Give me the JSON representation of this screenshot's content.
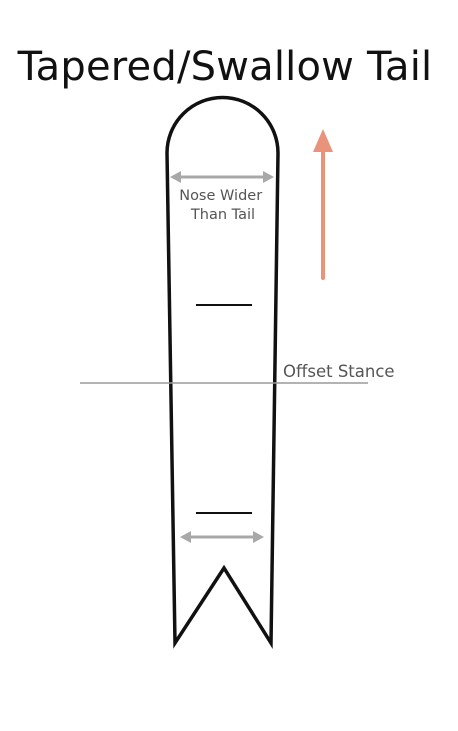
{
  "title": "Tapered/Swallow Tail",
  "labels": {
    "nose_width": [
      "Nose Wider",
      "Than Tail"
    ],
    "stance": "Offset Stance"
  },
  "colors": {
    "outline": "#111111",
    "width_arrows": "#a8a8a8",
    "stance_line": "#9a9a9a",
    "label_text": "#555555",
    "direction_arrow": "#e8937a"
  },
  "icons": {
    "direction": "up-arrow-icon",
    "width_indicator": "double-arrow-icon"
  }
}
